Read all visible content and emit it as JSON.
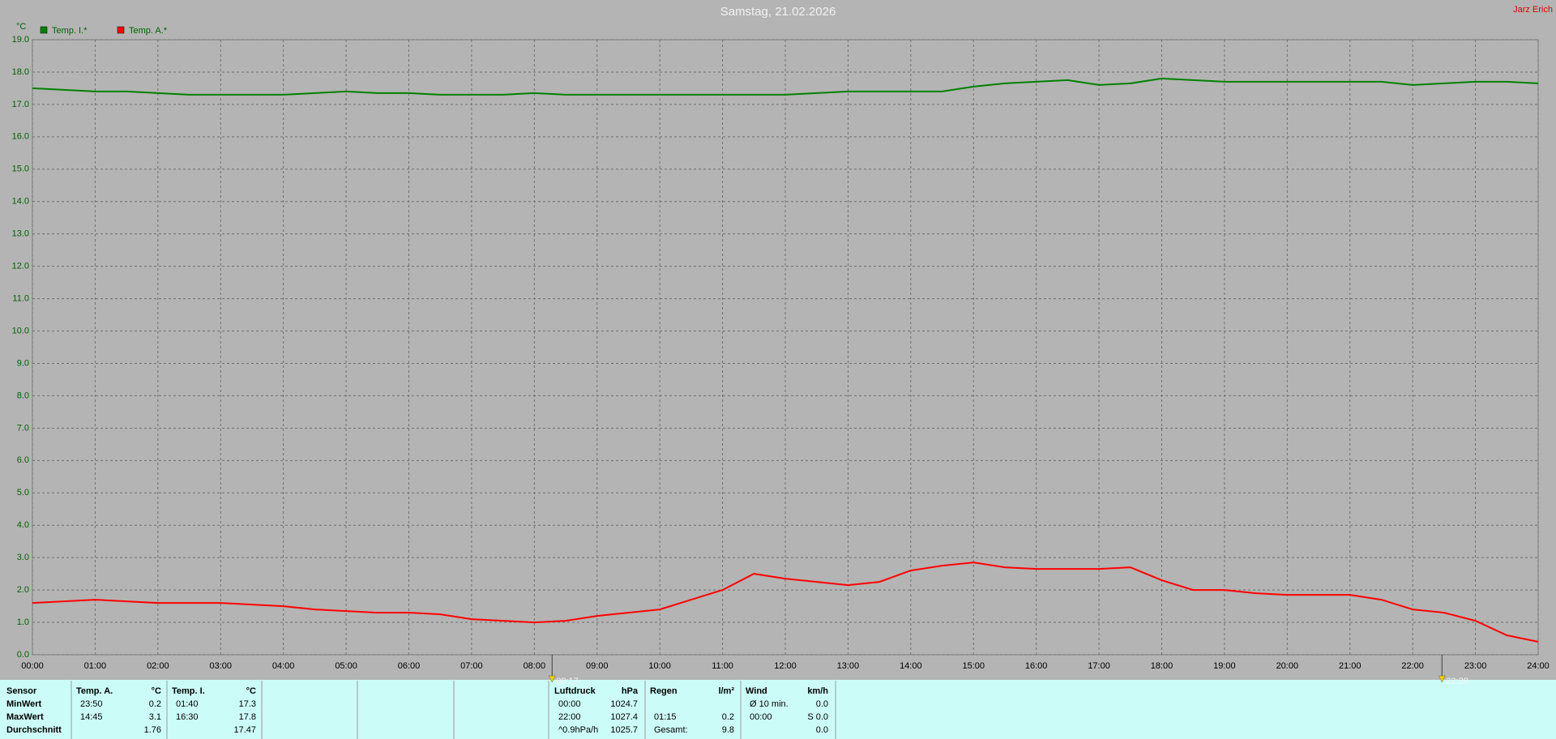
{
  "chart_data": {
    "type": "line",
    "title": "Samstag, 21.02.2026",
    "author": "Jarz Erich",
    "y_unit": "°C",
    "x": [
      0,
      0.5,
      1,
      1.5,
      2,
      2.5,
      3,
      3.5,
      4,
      4.5,
      5,
      5.5,
      6,
      6.5,
      7,
      7.5,
      8,
      8.5,
      9,
      9.5,
      10,
      10.5,
      11,
      11.5,
      12,
      12.5,
      13,
      13.5,
      14,
      14.5,
      15,
      15.5,
      16,
      16.5,
      17,
      17.5,
      18,
      18.5,
      19,
      19.5,
      20,
      20.5,
      21,
      21.5,
      22,
      22.5,
      23,
      23.5,
      24
    ],
    "series": [
      {
        "name": "Temp. I.*",
        "color": "#008000",
        "values": [
          17.5,
          17.45,
          17.4,
          17.4,
          17.35,
          17.3,
          17.3,
          17.3,
          17.3,
          17.35,
          17.4,
          17.35,
          17.35,
          17.3,
          17.3,
          17.3,
          17.35,
          17.3,
          17.3,
          17.3,
          17.3,
          17.3,
          17.3,
          17.3,
          17.3,
          17.35,
          17.4,
          17.4,
          17.4,
          17.4,
          17.55,
          17.65,
          17.7,
          17.75,
          17.6,
          17.65,
          17.8,
          17.75,
          17.7,
          17.7,
          17.7,
          17.7,
          17.7,
          17.7,
          17.6,
          17.65,
          17.7,
          17.7,
          17.65
        ]
      },
      {
        "name": "Temp. A.*",
        "color": "#ff0000",
        "values": [
          1.6,
          1.65,
          1.7,
          1.65,
          1.6,
          1.6,
          1.6,
          1.55,
          1.5,
          1.4,
          1.35,
          1.3,
          1.3,
          1.25,
          1.1,
          1.05,
          1.0,
          1.05,
          1.2,
          1.3,
          1.4,
          1.7,
          2.0,
          2.5,
          2.35,
          2.25,
          2.15,
          2.25,
          2.6,
          2.75,
          2.85,
          2.7,
          2.65,
          2.65,
          2.65,
          2.7,
          2.3,
          2.0,
          2.0,
          1.9,
          1.85,
          1.85,
          1.85,
          1.7,
          1.4,
          1.3,
          1.05,
          0.6,
          0.4
        ]
      }
    ],
    "xlim": [
      0,
      24
    ],
    "xticks": [
      {
        "value": 0,
        "label": "00:00"
      },
      {
        "value": 1,
        "label": "01:00"
      },
      {
        "value": 2,
        "label": "02:00"
      },
      {
        "value": 3,
        "label": "03:00"
      },
      {
        "value": 4,
        "label": "04:00"
      },
      {
        "value": 5,
        "label": "05:00"
      },
      {
        "value": 6,
        "label": "06:00"
      },
      {
        "value": 7,
        "label": "07:00"
      },
      {
        "value": 8,
        "label": "08:00"
      },
      {
        "value": 9,
        "label": "09:00"
      },
      {
        "value": 10,
        "label": "10:00"
      },
      {
        "value": 11,
        "label": "11:00"
      },
      {
        "value": 12,
        "label": "12:00"
      },
      {
        "value": 13,
        "label": "13:00"
      },
      {
        "value": 14,
        "label": "14:00"
      },
      {
        "value": 15,
        "label": "15:00"
      },
      {
        "value": 16,
        "label": "16:00"
      },
      {
        "value": 17,
        "label": "17:00"
      },
      {
        "value": 18,
        "label": "18:00"
      },
      {
        "value": 19,
        "label": "19:00"
      },
      {
        "value": 20,
        "label": "20:00"
      },
      {
        "value": 21,
        "label": "21:00"
      },
      {
        "value": 22,
        "label": "22:00"
      },
      {
        "value": 23,
        "label": "23:00"
      },
      {
        "value": 24,
        "label": "24:00"
      }
    ],
    "ylim": [
      0,
      19
    ],
    "yticks": [
      {
        "value": 0,
        "label": "0.0"
      },
      {
        "value": 1,
        "label": "1.0"
      },
      {
        "value": 2,
        "label": "2.0"
      },
      {
        "value": 3,
        "label": "3.0"
      },
      {
        "value": 4,
        "label": "4.0"
      },
      {
        "value": 5,
        "label": "5.0"
      },
      {
        "value": 6,
        "label": "6.0"
      },
      {
        "value": 7,
        "label": "7.0"
      },
      {
        "value": 8,
        "label": "8.0"
      },
      {
        "value": 9,
        "label": "9.0"
      },
      {
        "value": 10,
        "label": "10.0"
      },
      {
        "value": 11,
        "label": "11.0"
      },
      {
        "value": 12,
        "label": "12.0"
      },
      {
        "value": 13,
        "label": "13.0"
      },
      {
        "value": 14,
        "label": "14.0"
      },
      {
        "value": 15,
        "label": "15.0"
      },
      {
        "value": 16,
        "label": "16.0"
      },
      {
        "value": 17,
        "label": "17.0"
      },
      {
        "value": 18,
        "label": "18.0"
      },
      {
        "value": 19,
        "label": "19.0"
      }
    ],
    "grid": true,
    "annotations": [
      {
        "x": 8.2833,
        "label": "08:17"
      },
      {
        "x": 22.4667,
        "label": "22:28"
      }
    ]
  },
  "stats": {
    "labels": [
      "Sensor",
      "MinWert",
      "MaxWert",
      "Durchschnitt"
    ],
    "blocks": [
      {
        "header": [
          "Temp. A.",
          "°C"
        ],
        "rows": [
          [
            "23:50",
            "0.2"
          ],
          [
            "14:45",
            "3.1"
          ],
          [
            null,
            "1.76"
          ]
        ]
      },
      {
        "header": [
          "Temp. I.",
          "°C"
        ],
        "rows": [
          [
            "01:40",
            "17.3"
          ],
          [
            "16:30",
            "17.8"
          ],
          [
            null,
            "17.47"
          ]
        ]
      },
      {
        "header": [
          "Luftdruck",
          "hPa"
        ],
        "rows": [
          [
            "00:00",
            "1024.7"
          ],
          [
            "22:00",
            "1027.4"
          ],
          [
            "^0.9hPa/h",
            "1025.7"
          ]
        ]
      },
      {
        "header": [
          "Regen",
          "l/m²"
        ],
        "rows": [
          [
            null,
            null
          ],
          [
            "01:15",
            "0.2"
          ],
          [
            "Gesamt:",
            "9.8"
          ]
        ]
      },
      {
        "header": [
          "Wind",
          "km/h"
        ],
        "rows": [
          [
            "Ø 10 min.",
            "0.0"
          ],
          [
            "00:00",
            "S 0.0"
          ],
          [
            null,
            "0.0"
          ]
        ]
      }
    ]
  }
}
